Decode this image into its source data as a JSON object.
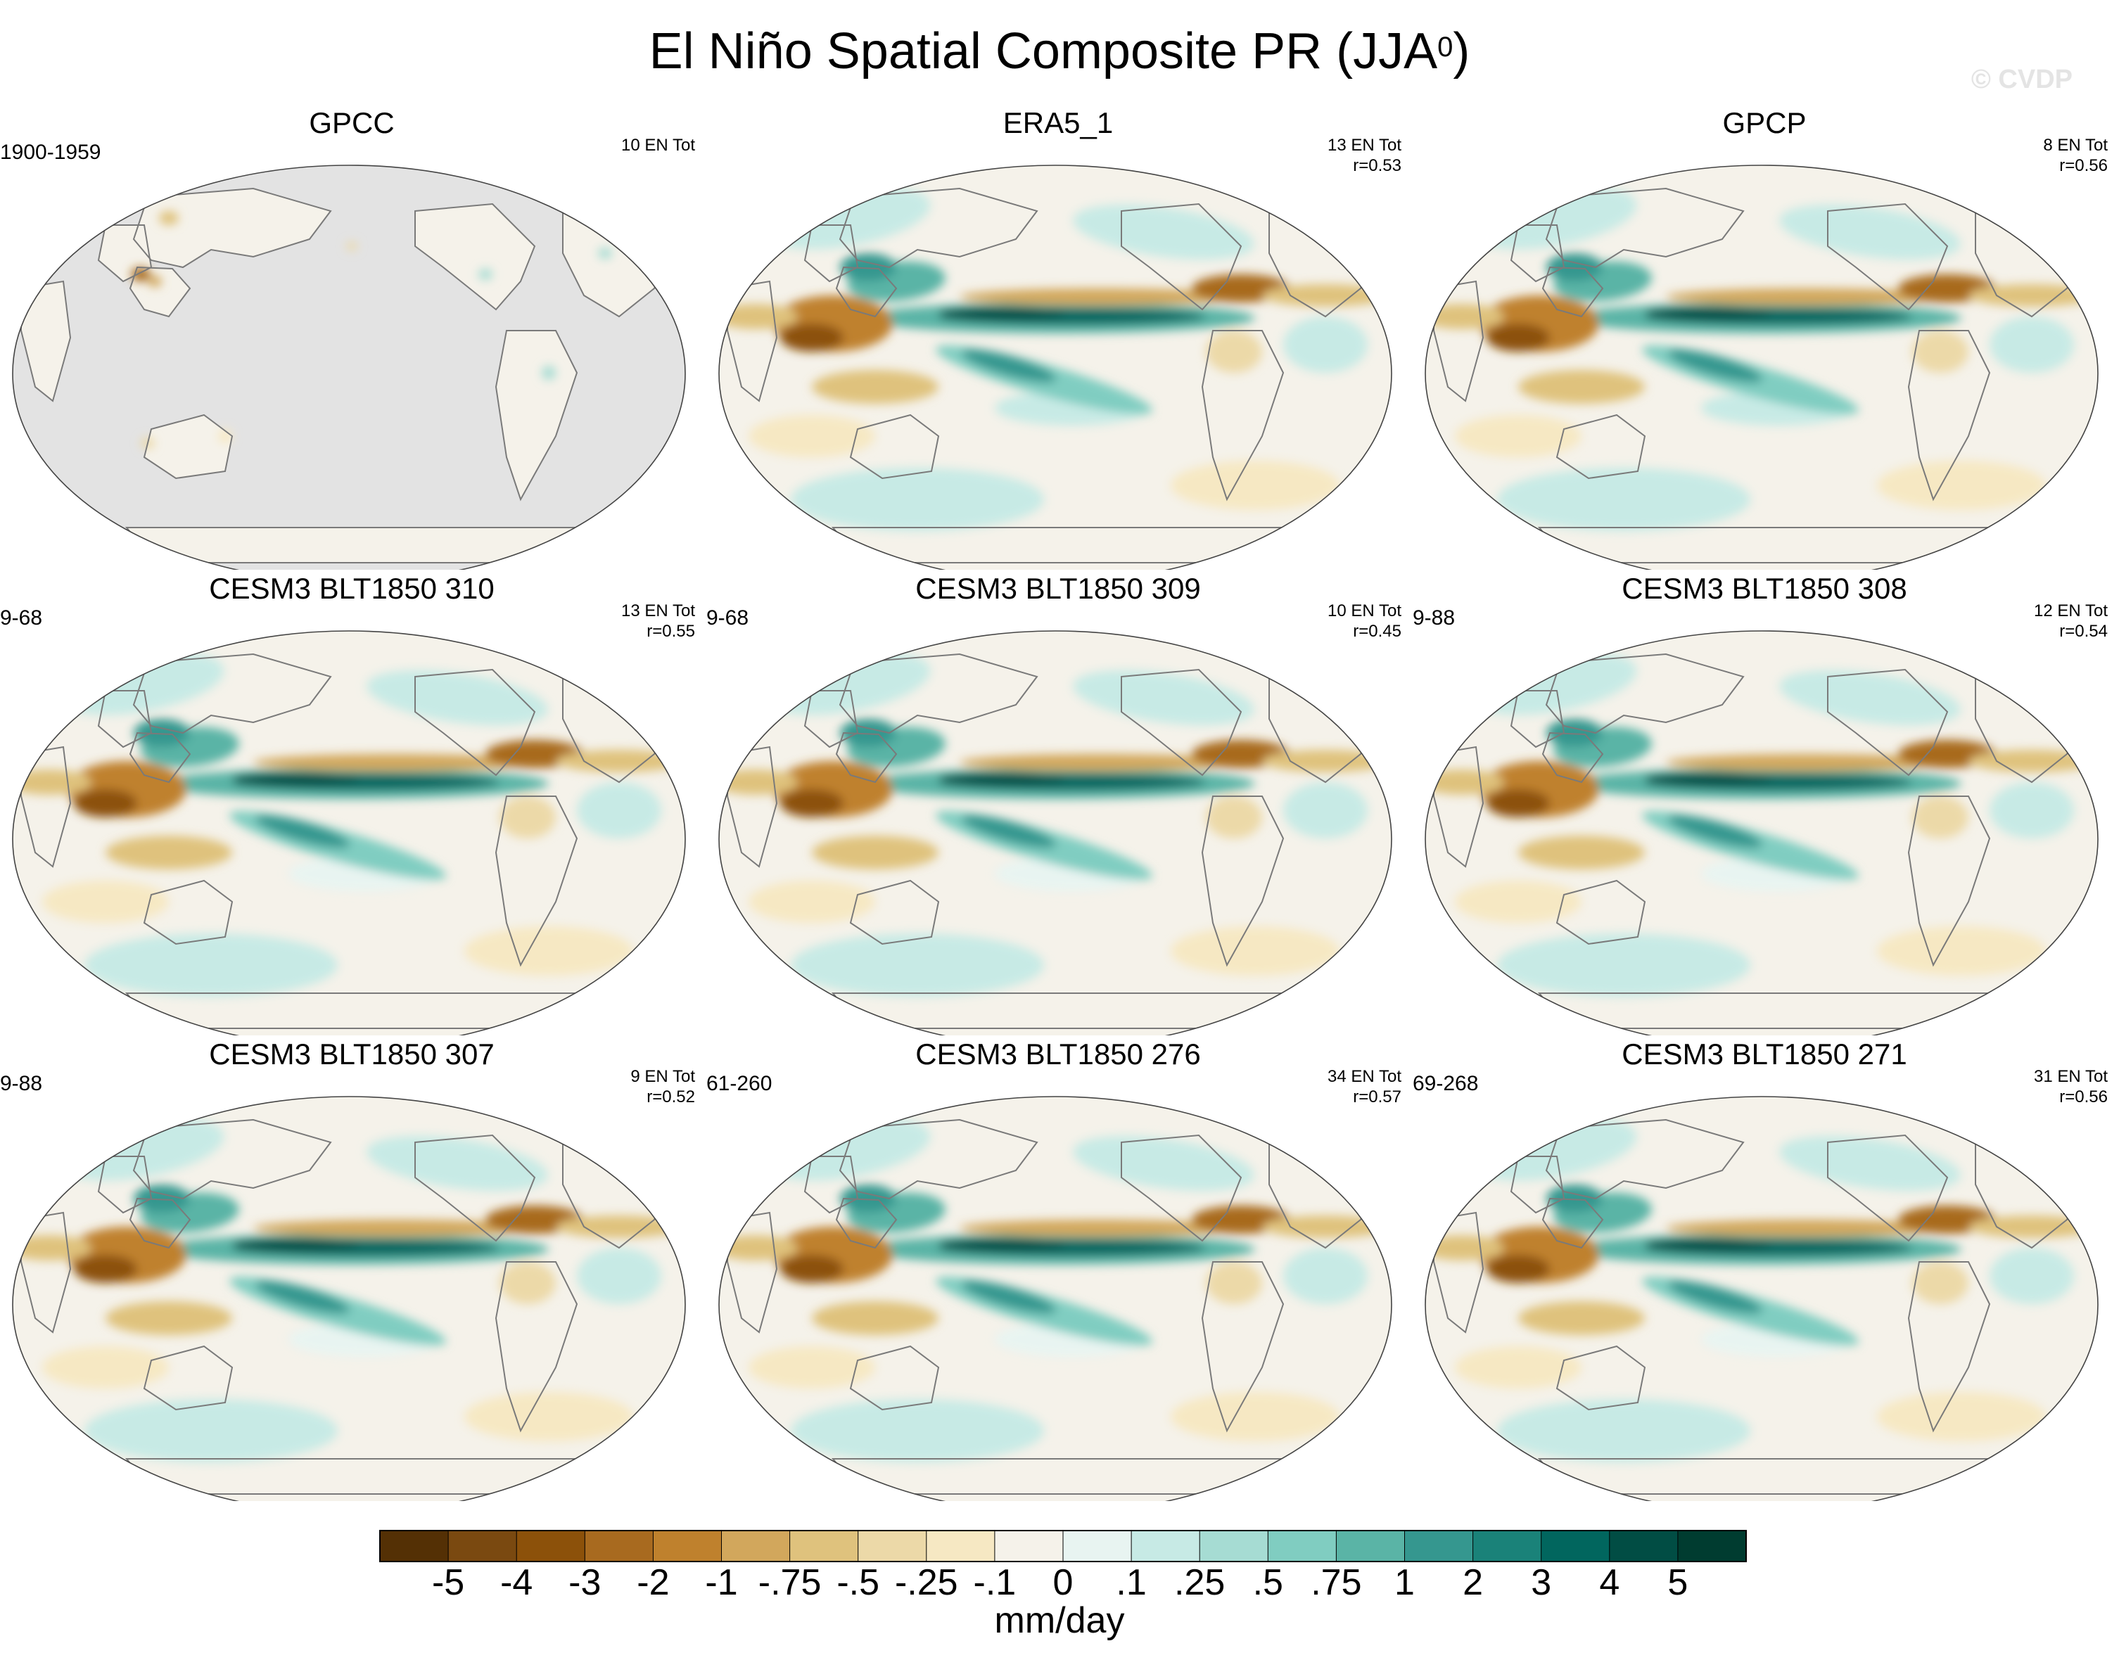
{
  "title": "El Niño Spatial Composite PR (JJA",
  "title_superscript": "0",
  "title_close": ")",
  "watermark": "© CVDP",
  "chart_data": {
    "type": "heatmap",
    "variable": "PR",
    "season": "JJA0",
    "projection": "Pacific-centered global ellipse",
    "colorbar": {
      "unit": "mm/day",
      "levels": [
        "-5",
        "-4",
        "-3",
        "-2",
        "-1",
        "-.75",
        "-.5",
        "-.25",
        "-.1",
        "0",
        ".1",
        ".25",
        ".5",
        ".75",
        "1",
        "2",
        "3",
        "4",
        "5"
      ],
      "colors": [
        "#543005",
        "#7a4910",
        "#8c510a",
        "#a86a1f",
        "#bf812d",
        "#d2a75c",
        "#dfc27d",
        "#ecd9a8",
        "#f6e8c3",
        "#f5f2ea",
        "#e8f4f1",
        "#c7eae5",
        "#a6dcd3",
        "#80cdc1",
        "#5ab4a6",
        "#35978f",
        "#1a8279",
        "#01665e",
        "#014d44",
        "#003c30"
      ]
    },
    "panels": [
      {
        "title": "GPCC",
        "period": "1900-1959",
        "events": "10 EN Tot",
        "corr": "",
        "ocean_masked": true
      },
      {
        "title": "ERA5_1",
        "period": "",
        "events": "13 EN Tot",
        "corr": "r=0.53",
        "ocean_masked": false
      },
      {
        "title": "GPCP",
        "period": "",
        "events": "8 EN Tot",
        "corr": "r=0.56",
        "ocean_masked": false
      },
      {
        "title": "CESM3 BLT1850 310",
        "period": "9-68",
        "events": "13 EN Tot",
        "corr": "r=0.55",
        "ocean_masked": false
      },
      {
        "title": "CESM3 BLT1850 309",
        "period": "9-68",
        "events": "10 EN Tot",
        "corr": "r=0.45",
        "ocean_masked": false
      },
      {
        "title": "CESM3 BLT1850 308",
        "period": "9-88",
        "events": "12 EN Tot",
        "corr": "r=0.54",
        "ocean_masked": false
      },
      {
        "title": "CESM3 BLT1850 307",
        "period": "9-88",
        "events": "9 EN Tot",
        "corr": "r=0.52",
        "ocean_masked": false
      },
      {
        "title": "CESM3 BLT1850 276",
        "period": "61-260",
        "events": "34 EN Tot",
        "corr": "r=0.57",
        "ocean_masked": false
      },
      {
        "title": "CESM3 BLT1850 271",
        "period": "69-268",
        "events": "31 EN Tot",
        "corr": "r=0.56",
        "ocean_masked": false
      }
    ]
  }
}
